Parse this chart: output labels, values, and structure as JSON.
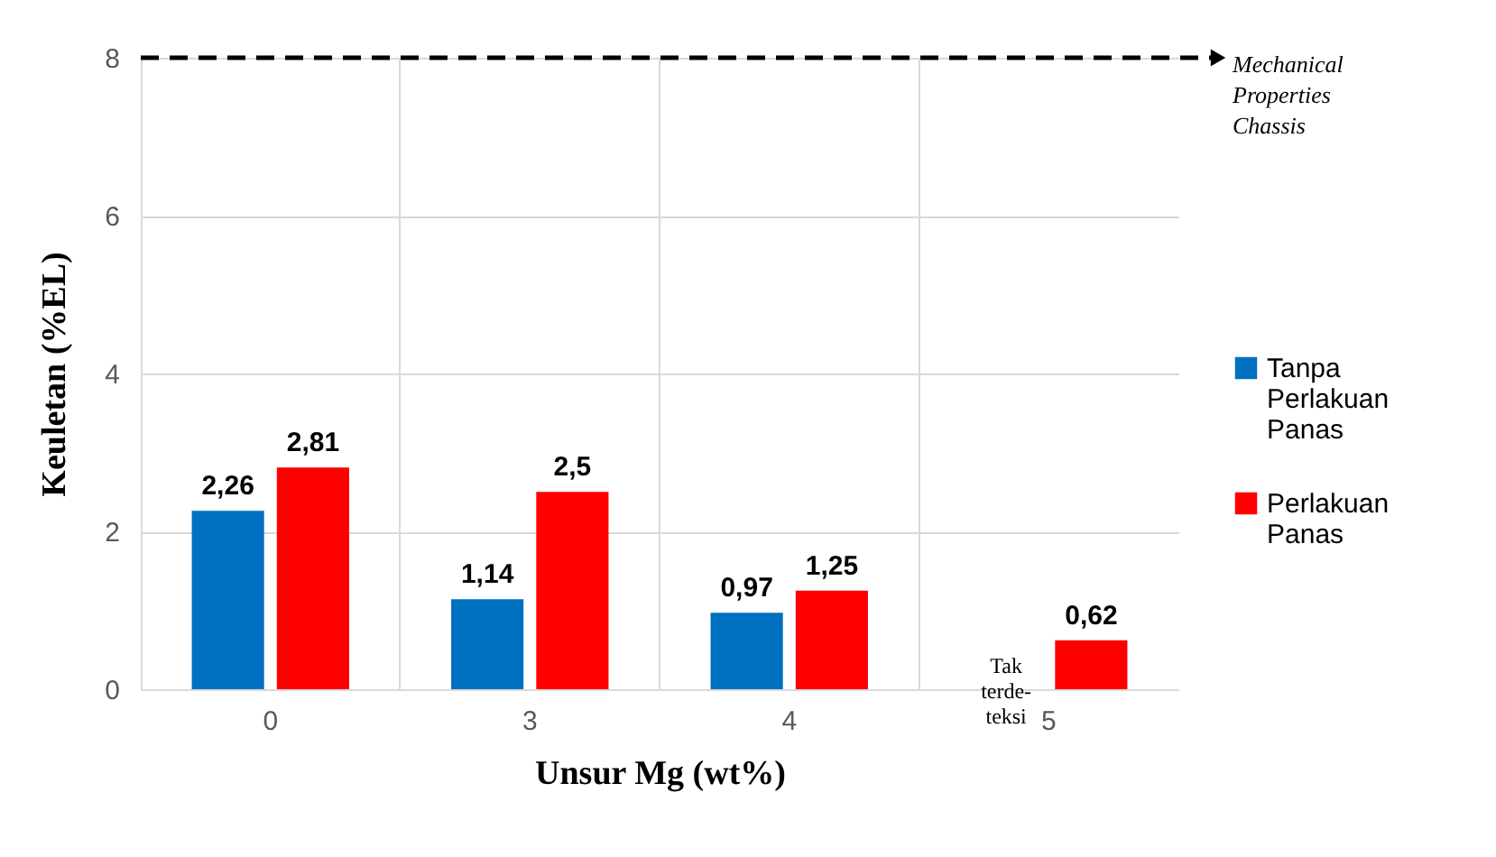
{
  "chart_data": {
    "type": "bar",
    "xlabel": "Unsur Mg (wt%)",
    "ylabel": "Keuletan  (%EL)",
    "categories": [
      "0",
      "3",
      "4",
      "5"
    ],
    "series": [
      {
        "name": "Tanpa Perlakuan Panas",
        "color": "#0070c0",
        "values": [
          2.26,
          1.14,
          0.97,
          null
        ],
        "value_labels": [
          "2,26",
          "1,14",
          "0,97",
          null
        ]
      },
      {
        "name": "Perlakuan Panas",
        "color": "#ff0000",
        "values": [
          2.81,
          2.5,
          1.25,
          0.62
        ],
        "value_labels": [
          "2,81",
          "2,5",
          "1,25",
          "0,62"
        ]
      }
    ],
    "ylim": [
      0,
      8
    ],
    "yticks": [
      0,
      2,
      4,
      6,
      8
    ],
    "grid": true,
    "legend": "right",
    "ref_lines": [
      {
        "axis": "y",
        "value": 8,
        "label": "Mechanical Properties Chassis",
        "line_style": "dashed",
        "color": "#000000"
      }
    ],
    "annotations": [
      {
        "text": "Tak terde-teksi",
        "x": "5",
        "y": 0
      }
    ]
  }
}
